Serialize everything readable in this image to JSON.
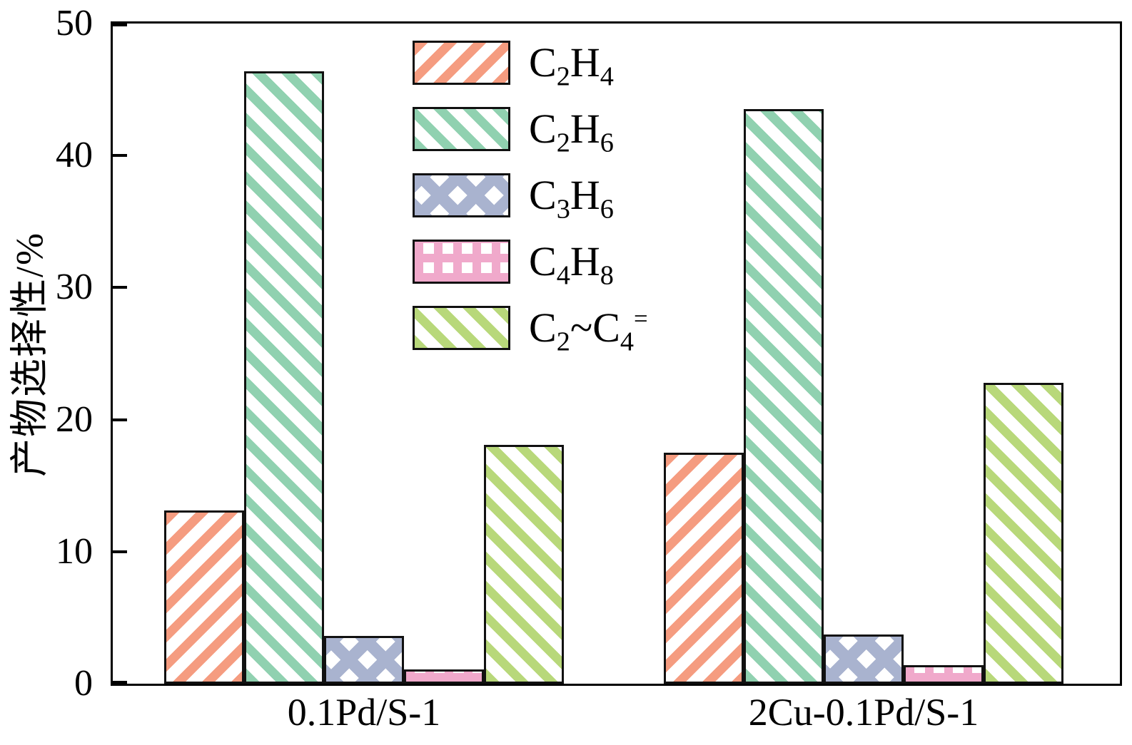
{
  "chart_data": {
    "type": "bar",
    "title": "",
    "ylabel": "产物选择性/%",
    "xlabel": "",
    "ylim": [
      0,
      50
    ],
    "yticks": [
      0,
      10,
      20,
      30,
      40,
      50
    ],
    "grid": false,
    "legend_position": "upper center-left, no frame",
    "categories": [
      "0.1Pd/S-1",
      "2Cu-0.1Pd/S-1"
    ],
    "series": [
      {
        "name": "C_2H_4",
        "pattern": "diag-up",
        "color": "#f59c80",
        "values": [
          13.1,
          17.5
        ]
      },
      {
        "name": "C_2H_6",
        "pattern": "diag-down",
        "color": "#90d1b0",
        "values": [
          46.4,
          43.5
        ]
      },
      {
        "name": "C_3H_6",
        "pattern": "cross",
        "color": "#a9b3cf",
        "values": [
          3.6,
          3.7
        ]
      },
      {
        "name": "C_4H_8",
        "pattern": "grid",
        "color": "#f0a9cb",
        "values": [
          1.1,
          1.4
        ]
      },
      {
        "name": "C_2~C_4^=",
        "pattern": "diag-down",
        "color": "#b8d87a",
        "values": [
          18.1,
          22.8
        ]
      }
    ],
    "axis_color": "#000000",
    "bar_border_color": "#111111"
  }
}
